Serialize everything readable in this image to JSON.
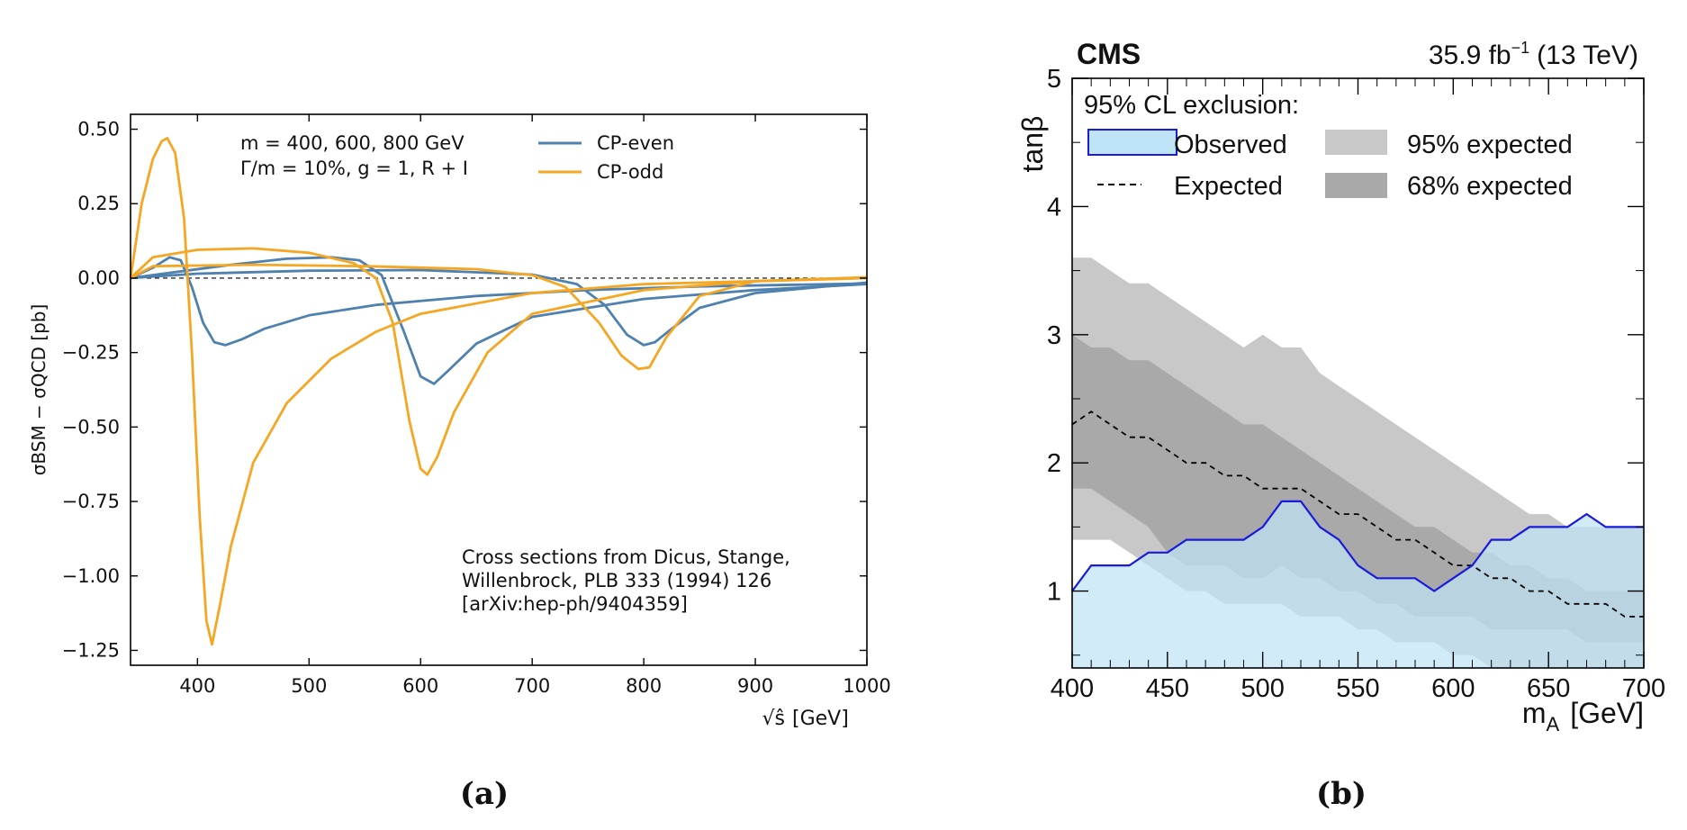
{
  "chart_data": [
    {
      "type": "line",
      "panel_label": "(a)",
      "xlabel_sqrt": "√ŝ",
      "xlabel_unit": "[GeV]",
      "ylabel": "σBSM − σQCD [pb]",
      "xlim": [
        340,
        1000
      ],
      "ylim": [
        -1.3,
        0.55
      ],
      "x_ticks": [
        400,
        500,
        600,
        700,
        800,
        900,
        1000
      ],
      "x_tick_labels": [
        "400",
        "500",
        "600",
        "700",
        "800",
        "900",
        "1000"
      ],
      "y_ticks": [
        0.5,
        0.25,
        0.0,
        -0.25,
        -0.5,
        -0.75,
        -1.0,
        -1.25
      ],
      "y_tick_labels": [
        "0.50",
        "0.25",
        "0.00",
        "−0.25",
        "−0.50",
        "−0.75",
        "−1.00",
        "−1.25"
      ],
      "params_line1": "m = 400, 600, 800 GeV",
      "params_line2": "Γ/m = 10%, g = 1, R + I",
      "citation": [
        "Cross sections from Dicus, Stange,",
        "Willenbrock, PLB 333 (1994) 126",
        "[arXiv:hep-ph/9404359]"
      ],
      "series": [
        {
          "name": "CP-even",
          "color": "#4f81af",
          "curves": [
            {
              "mass": 400,
              "x": [
                340,
                360,
                375,
                385,
                395,
                405,
                415,
                425,
                440,
                460,
                500,
                560,
                650,
                750,
                850,
                1000
              ],
              "y": [
                0,
                0.035,
                0.07,
                0.06,
                -0.03,
                -0.15,
                -0.215,
                -0.225,
                -0.205,
                -0.17,
                -0.125,
                -0.09,
                -0.06,
                -0.04,
                -0.028,
                -0.018
              ]
            },
            {
              "mass": 600,
              "x": [
                340,
                380,
                430,
                480,
                520,
                545,
                565,
                585,
                600,
                612,
                625,
                650,
                700,
                800,
                900,
                1000
              ],
              "y": [
                0,
                0.02,
                0.045,
                0.065,
                0.07,
                0.06,
                0.01,
                -0.18,
                -0.33,
                -0.355,
                -0.31,
                -0.22,
                -0.13,
                -0.07,
                -0.04,
                -0.02
              ]
            },
            {
              "mass": 800,
              "x": [
                340,
                400,
                500,
                600,
                700,
                740,
                765,
                785,
                800,
                810,
                825,
                850,
                900,
                1000
              ],
              "y": [
                0,
                0.015,
                0.025,
                0.027,
                0.012,
                -0.02,
                -0.09,
                -0.19,
                -0.225,
                -0.215,
                -0.17,
                -0.1,
                -0.05,
                -0.015
              ]
            }
          ]
        },
        {
          "name": "CP-odd",
          "color": "#f5a623",
          "curves": [
            {
              "mass": 400,
              "x": [
                340,
                350,
                360,
                368,
                373,
                380,
                388,
                395,
                402,
                408,
                413,
                420,
                430,
                450,
                480,
                520,
                560,
                600,
                700,
                800,
                900,
                1000
              ],
              "y": [
                0,
                0.25,
                0.4,
                0.46,
                0.47,
                0.42,
                0.2,
                -0.25,
                -0.8,
                -1.15,
                -1.23,
                -1.1,
                -0.9,
                -0.62,
                -0.42,
                -0.27,
                -0.18,
                -0.12,
                -0.05,
                -0.02,
                -0.01,
                0.0
              ]
            },
            {
              "mass": 600,
              "x": [
                340,
                360,
                400,
                450,
                500,
                540,
                560,
                575,
                590,
                600,
                606,
                615,
                630,
                660,
                700,
                800,
                900,
                1000
              ],
              "y": [
                0,
                0.07,
                0.095,
                0.1,
                0.085,
                0.05,
                0.0,
                -0.15,
                -0.48,
                -0.64,
                -0.66,
                -0.6,
                -0.45,
                -0.25,
                -0.12,
                -0.04,
                -0.01,
                0.0
              ]
            },
            {
              "mass": 800,
              "x": [
                340,
                360,
                450,
                550,
                650,
                700,
                730,
                760,
                780,
                795,
                805,
                820,
                850,
                900,
                1000
              ],
              "y": [
                0,
                0.04,
                0.045,
                0.04,
                0.03,
                0.01,
                -0.03,
                -0.15,
                -0.26,
                -0.305,
                -0.3,
                -0.2,
                -0.06,
                -0.01,
                0.003
              ]
            }
          ]
        }
      ]
    },
    {
      "type": "area",
      "panel_label": "(b)",
      "experiment": "CMS",
      "lumi_prefix": "35.9 fb",
      "lumi_exp": "−1",
      "lumi_energy": "(13 TeV)",
      "xlabel_main": "m",
      "xlabel_sub": "A",
      "xlabel_unit": "[GeV]",
      "ylabel": "tanβ",
      "xlim": [
        400,
        700
      ],
      "ylim": [
        0.4,
        5
      ],
      "x_ticks": [
        400,
        450,
        500,
        550,
        600,
        650,
        700
      ],
      "x_tick_labels": [
        "400",
        "450",
        "500",
        "550",
        "600",
        "650",
        "700"
      ],
      "y_ticks": [
        1,
        2,
        3,
        4,
        5
      ],
      "y_tick_labels": [
        "1",
        "2",
        "3",
        "4",
        "5"
      ],
      "legend_title": "95% CL exclusion:",
      "legend": {
        "observed": "Observed",
        "expected": "Expected",
        "band95": "95% expected",
        "band68": "68% expected"
      },
      "colors": {
        "observed_fill": "#bfe3f7",
        "observed_line": "#1a1adf",
        "band95": "#c8c8c8",
        "band68": "#a9a9a9"
      },
      "mass_points": [
        400,
        410,
        420,
        430,
        440,
        450,
        460,
        470,
        480,
        490,
        500,
        510,
        520,
        530,
        540,
        550,
        560,
        570,
        580,
        590,
        600,
        610,
        620,
        630,
        640,
        650,
        660,
        670,
        680,
        690,
        700
      ],
      "observed": [
        1.0,
        1.2,
        1.2,
        1.2,
        1.3,
        1.3,
        1.4,
        1.4,
        1.4,
        1.4,
        1.5,
        1.7,
        1.7,
        1.5,
        1.4,
        1.2,
        1.1,
        1.1,
        1.1,
        1.0,
        1.1,
        1.2,
        1.4,
        1.4,
        1.5,
        1.5,
        1.5,
        1.6,
        1.5,
        1.5,
        1.5
      ],
      "expected": [
        2.3,
        2.4,
        2.3,
        2.2,
        2.2,
        2.1,
        2.0,
        2.0,
        1.9,
        1.9,
        1.8,
        1.8,
        1.8,
        1.7,
        1.6,
        1.6,
        1.5,
        1.4,
        1.4,
        1.3,
        1.2,
        1.2,
        1.1,
        1.1,
        1.0,
        1.0,
        0.9,
        0.9,
        0.9,
        0.8,
        0.8
      ],
      "band68_up": [
        3.0,
        2.9,
        2.9,
        2.8,
        2.8,
        2.7,
        2.6,
        2.5,
        2.4,
        2.3,
        2.3,
        2.2,
        2.1,
        2.0,
        1.9,
        1.8,
        1.7,
        1.6,
        1.5,
        1.5,
        1.4,
        1.3,
        1.3,
        1.2,
        1.2,
        1.1,
        1.1,
        1.0,
        1.0,
        1.0,
        1.0
      ],
      "band68_dn": [
        1.8,
        1.8,
        1.7,
        1.6,
        1.5,
        1.3,
        1.2,
        1.2,
        1.2,
        1.1,
        1.1,
        1.2,
        1.1,
        1.1,
        1.0,
        1.0,
        0.9,
        0.9,
        0.8,
        0.8,
        0.8,
        0.8,
        0.7,
        0.7,
        0.7,
        0.7,
        0.7,
        0.6,
        0.6,
        0.6,
        0.6
      ],
      "band95_up": [
        3.6,
        3.6,
        3.5,
        3.4,
        3.4,
        3.3,
        3.2,
        3.1,
        3.0,
        2.9,
        3.0,
        2.9,
        2.9,
        2.7,
        2.6,
        2.5,
        2.4,
        2.3,
        2.2,
        2.1,
        2.0,
        1.9,
        1.8,
        1.7,
        1.6,
        1.6,
        1.5,
        1.5,
        1.5,
        1.5,
        1.5
      ],
      "band95_dn": [
        1.4,
        1.4,
        1.4,
        1.3,
        1.2,
        1.1,
        1.0,
        1.0,
        0.9,
        0.9,
        0.9,
        0.9,
        0.8,
        0.8,
        0.8,
        0.7,
        0.7,
        0.6,
        0.6,
        0.6,
        0.5,
        0.5,
        0.4,
        0.4,
        0.4,
        0.4,
        0.4,
        0.4,
        0.4,
        0.4,
        0.4
      ]
    }
  ]
}
